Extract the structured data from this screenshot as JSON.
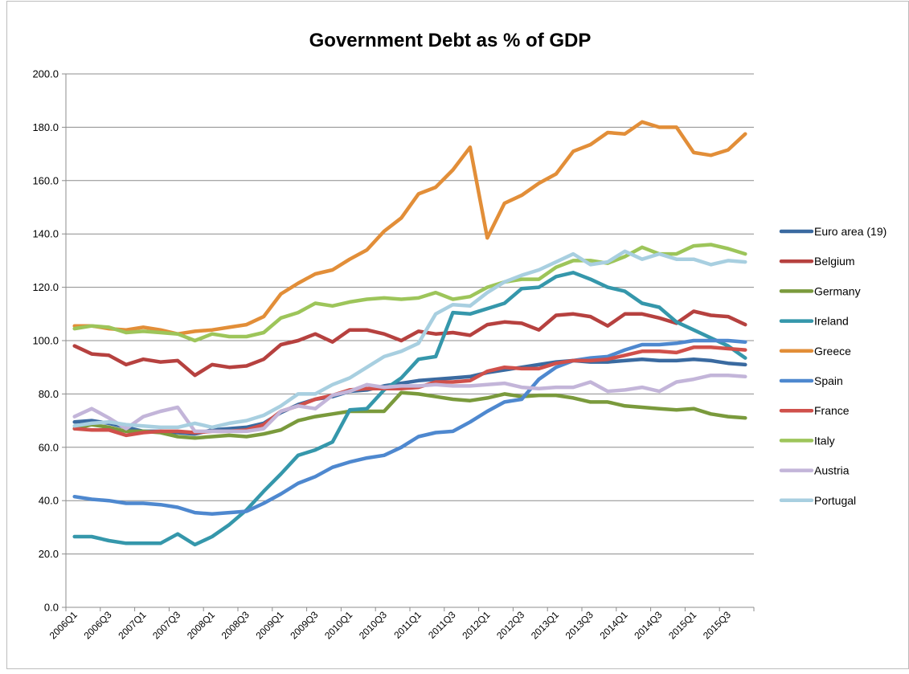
{
  "chart_data": {
    "type": "line",
    "title": "Government Debt as % of GDP",
    "ylim": [
      0,
      200
    ],
    "yticks": [
      "0.0",
      "20.0",
      "40.0",
      "60.0",
      "80.0",
      "100.0",
      "120.0",
      "140.0",
      "160.0",
      "180.0",
      "200.0"
    ],
    "grid": "horizontal",
    "legend_position": "right",
    "x": [
      "2006Q1",
      "2006Q2",
      "2006Q3",
      "2006Q4",
      "2007Q1",
      "2007Q2",
      "2007Q3",
      "2007Q4",
      "2008Q1",
      "2008Q2",
      "2008Q3",
      "2008Q4",
      "2009Q1",
      "2009Q2",
      "2009Q3",
      "2009Q4",
      "2010Q1",
      "2010Q2",
      "2010Q3",
      "2010Q4",
      "2011Q1",
      "2011Q2",
      "2011Q3",
      "2011Q4",
      "2012Q1",
      "2012Q2",
      "2012Q3",
      "2012Q4",
      "2013Q1",
      "2013Q2",
      "2013Q3",
      "2013Q4",
      "2014Q1",
      "2014Q2",
      "2014Q3",
      "2014Q4",
      "2015Q1",
      "2015Q2",
      "2015Q3",
      "2015Q4"
    ],
    "x_tick_labels": [
      "2006Q1",
      "2006Q3",
      "2007Q1",
      "2007Q3",
      "2008Q1",
      "2008Q3",
      "2009Q1",
      "2009Q3",
      "2010Q1",
      "2010Q3",
      "2011Q1",
      "2011Q3",
      "2012Q1",
      "2012Q3",
      "2013Q1",
      "2013Q3",
      "2014Q1",
      "2014Q3",
      "2015Q1",
      "2015Q3"
    ],
    "series": [
      {
        "name": "Euro area (19)",
        "color": "#3a6aa0",
        "values": [
          69.5,
          70.0,
          69.0,
          67.5,
          66.0,
          66.0,
          65.5,
          65.0,
          66.5,
          67.0,
          67.5,
          69.0,
          73.0,
          76.0,
          78.0,
          79.0,
          81.0,
          81.5,
          83.0,
          84.0,
          85.0,
          85.5,
          86.0,
          86.5,
          88.0,
          89.0,
          90.0,
          91.0,
          92.0,
          92.5,
          92.0,
          92.0,
          92.5,
          93.0,
          92.5,
          92.5,
          93.0,
          92.5,
          91.5,
          91.0
        ]
      },
      {
        "name": "Belgium",
        "color": "#b6413f",
        "values": [
          98.0,
          95.0,
          94.5,
          91.0,
          93.0,
          92.0,
          92.5,
          87.0,
          91.0,
          90.0,
          90.5,
          93.0,
          98.5,
          100.0,
          102.5,
          99.5,
          104.0,
          104.0,
          102.5,
          100.0,
          103.5,
          102.5,
          103.0,
          102.0,
          106.0,
          107.0,
          106.5,
          104.0,
          109.5,
          110.0,
          109.0,
          105.5,
          110.0,
          110.0,
          108.5,
          106.5,
          111.0,
          109.5,
          109.0,
          106.0
        ]
      },
      {
        "name": "Germany",
        "color": "#7a9a3c",
        "values": [
          67.0,
          68.5,
          67.5,
          66.0,
          66.0,
          65.5,
          64.0,
          63.5,
          64.0,
          64.5,
          64.0,
          65.0,
          66.5,
          70.0,
          71.5,
          72.5,
          73.5,
          73.5,
          73.5,
          80.5,
          80.0,
          79.0,
          78.0,
          77.5,
          78.5,
          80.0,
          79.0,
          79.5,
          79.5,
          78.5,
          77.0,
          77.0,
          75.5,
          75.0,
          74.5,
          74.0,
          74.5,
          72.5,
          71.5,
          71.0
        ]
      },
      {
        "name": "Ireland",
        "color": "#3597ab",
        "values": [
          26.5,
          26.5,
          25.0,
          24.0,
          24.0,
          24.0,
          27.5,
          23.5,
          26.5,
          31.0,
          36.5,
          43.5,
          50.0,
          57.0,
          59.0,
          62.0,
          74.0,
          74.5,
          81.5,
          86.0,
          93.0,
          94.0,
          110.5,
          110.0,
          112.0,
          114.0,
          119.5,
          120.0,
          124.0,
          125.5,
          123.0,
          120.0,
          118.5,
          114.0,
          112.5,
          107.0,
          104.0,
          101.0,
          98.0,
          93.5
        ]
      },
      {
        "name": "Greece",
        "color": "#e28e38",
        "values": [
          105.5,
          105.5,
          104.5,
          104.0,
          105.0,
          104.0,
          102.5,
          103.5,
          104.0,
          105.0,
          106.0,
          109.0,
          117.5,
          121.5,
          125.0,
          126.5,
          130.5,
          134.0,
          141.0,
          146.0,
          155.0,
          157.5,
          164.0,
          172.5,
          138.5,
          151.5,
          154.5,
          159.0,
          162.5,
          171.0,
          173.5,
          178.0,
          177.5,
          182.0,
          180.0,
          180.0,
          170.5,
          169.5,
          171.5,
          177.5
        ]
      },
      {
        "name": "Spain",
        "color": "#4e88cf",
        "values": [
          41.5,
          40.5,
          40.0,
          39.0,
          39.0,
          38.5,
          37.5,
          35.5,
          35.0,
          35.5,
          36.0,
          39.0,
          42.5,
          46.5,
          49.0,
          52.5,
          54.5,
          56.0,
          57.0,
          60.0,
          64.0,
          65.5,
          66.0,
          69.5,
          73.5,
          77.0,
          78.0,
          85.5,
          90.0,
          92.5,
          93.5,
          94.0,
          96.5,
          98.5,
          98.5,
          99.0,
          100.0,
          100.0,
          100.0,
          99.5
        ]
      },
      {
        "name": "France",
        "color": "#d0504b",
        "values": [
          67.0,
          66.5,
          66.5,
          64.5,
          65.5,
          66.0,
          66.0,
          65.5,
          66.0,
          66.0,
          66.5,
          68.5,
          73.5,
          75.5,
          78.0,
          79.5,
          81.5,
          82.0,
          82.0,
          82.0,
          82.5,
          84.5,
          84.5,
          85.0,
          88.5,
          90.0,
          89.5,
          89.5,
          91.5,
          92.5,
          92.5,
          93.0,
          94.5,
          96.0,
          96.0,
          95.5,
          97.5,
          97.5,
          97.0,
          96.5
        ]
      },
      {
        "name": "Italy",
        "color": "#9dc55a",
        "values": [
          104.5,
          105.5,
          105.0,
          103.0,
          103.5,
          103.0,
          102.5,
          100.0,
          102.5,
          101.5,
          101.5,
          103.0,
          108.5,
          110.5,
          114.0,
          113.0,
          114.5,
          115.5,
          116.0,
          115.5,
          116.0,
          118.0,
          115.5,
          116.5,
          120.0,
          122.0,
          123.0,
          123.0,
          127.5,
          130.0,
          130.0,
          129.0,
          131.5,
          135.0,
          132.5,
          132.5,
          135.5,
          136.0,
          134.5,
          132.5
        ]
      },
      {
        "name": "Austria",
        "color": "#c3b5d9",
        "values": [
          71.5,
          74.5,
          71.0,
          67.0,
          71.5,
          73.5,
          75.0,
          66.0,
          66.0,
          66.0,
          66.0,
          67.0,
          73.5,
          75.5,
          74.5,
          79.5,
          81.0,
          83.5,
          82.5,
          83.0,
          83.0,
          83.5,
          83.0,
          83.0,
          83.5,
          84.0,
          82.5,
          82.0,
          82.5,
          82.5,
          84.5,
          81.0,
          81.5,
          82.5,
          81.0,
          84.5,
          85.5,
          87.0,
          87.0,
          86.5
        ]
      },
      {
        "name": "Portugal",
        "color": "#a8cfe0",
        "values": [
          68.0,
          69.0,
          69.5,
          68.5,
          68.0,
          67.5,
          67.5,
          69.0,
          67.5,
          69.0,
          70.0,
          72.0,
          75.5,
          80.0,
          80.0,
          83.5,
          86.0,
          90.0,
          94.0,
          96.0,
          99.0,
          110.0,
          113.5,
          113.0,
          118.0,
          122.0,
          124.5,
          126.5,
          129.5,
          132.5,
          128.5,
          129.5,
          133.5,
          130.5,
          132.5,
          130.5,
          130.5,
          128.5,
          130.0,
          129.5
        ]
      }
    ]
  }
}
